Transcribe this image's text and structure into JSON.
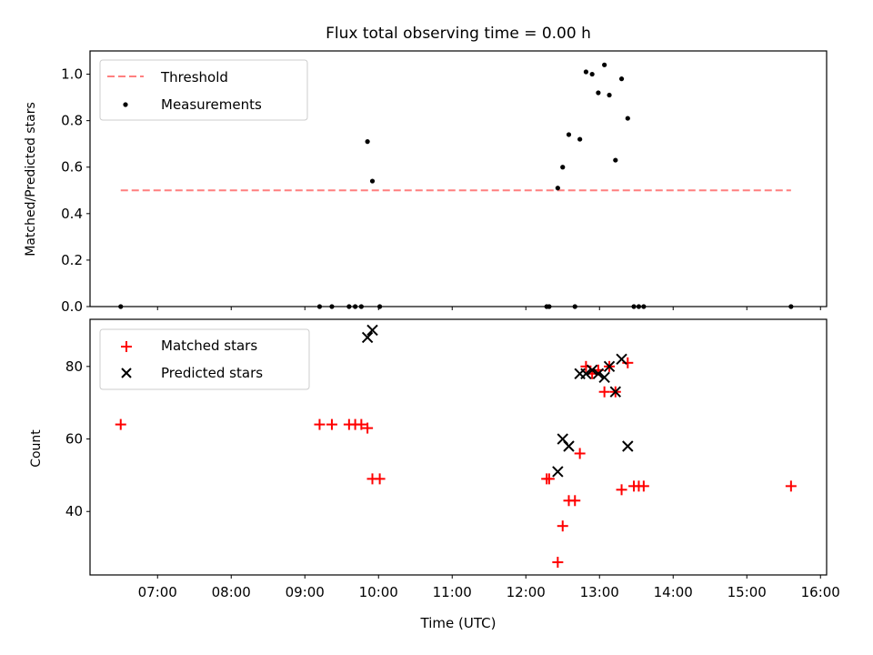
{
  "chart_data": [
    {
      "type": "scatter",
      "title": "Flux total observing time = 0.00 h",
      "xlabel": "",
      "ylabel": "Matched/Predicted stars",
      "xlim": [
        "06:05",
        "16:05"
      ],
      "ylim": [
        0,
        1.1
      ],
      "yticks": [
        0.0,
        0.2,
        0.4,
        0.6,
        0.8,
        1.0
      ],
      "ytick_labels": [
        "0.0",
        "0.2",
        "0.4",
        "0.6",
        "0.8",
        "1.0"
      ],
      "grid": false,
      "legend_position": "upper-left",
      "series": [
        {
          "name": "Threshold",
          "kind": "dashed-line",
          "color": "#ff7f7f",
          "x": [
            "06:30",
            "15:36"
          ],
          "y": [
            0.5,
            0.5
          ]
        },
        {
          "name": "Measurements",
          "kind": "dot",
          "color": "#000000",
          "x": [
            "06:30",
            "09:12",
            "09:22",
            "09:36",
            "09:41",
            "09:46",
            "09:51",
            "09:55",
            "10:01",
            "12:17",
            "12:19",
            "12:26",
            "12:30",
            "12:35",
            "12:40",
            "12:44",
            "12:49",
            "12:54",
            "12:59",
            "13:04",
            "13:08",
            "13:13",
            "13:18",
            "13:23",
            "13:28",
            "13:32",
            "13:36",
            "15:36"
          ],
          "y": [
            0.0,
            0.0,
            0.0,
            0.0,
            0.0,
            0.0,
            0.71,
            0.54,
            0.0,
            0.0,
            0.0,
            0.51,
            0.6,
            0.74,
            0.0,
            0.72,
            1.01,
            1.0,
            0.92,
            1.04,
            0.91,
            0.63,
            0.98,
            0.81,
            0.0,
            0.0,
            0.0,
            0.0
          ]
        }
      ]
    },
    {
      "type": "scatter",
      "title": "",
      "xlabel": "Time (UTC)",
      "ylabel": "Count",
      "xlim": [
        "06:05",
        "16:05"
      ],
      "ylim": [
        22.5,
        93
      ],
      "xtick_labels": [
        "07:00",
        "08:00",
        "09:00",
        "10:00",
        "11:00",
        "12:00",
        "13:00",
        "14:00",
        "15:00",
        "16:00"
      ],
      "yticks": [
        40,
        60,
        80
      ],
      "ytick_labels": [
        "40",
        "60",
        "80"
      ],
      "grid": false,
      "legend_position": "upper-left",
      "series": [
        {
          "name": "Matched stars",
          "marker": "plus",
          "color": "#ff0000",
          "x": [
            "06:30",
            "09:12",
            "09:22",
            "09:36",
            "09:41",
            "09:46",
            "09:51",
            "09:55",
            "10:01",
            "12:17",
            "12:19",
            "12:26",
            "12:30",
            "12:35",
            "12:40",
            "12:44",
            "12:49",
            "12:54",
            "12:59",
            "13:04",
            "13:08",
            "13:13",
            "13:18",
            "13:23",
            "13:28",
            "13:32",
            "13:36",
            "15:36"
          ],
          "y": [
            64,
            64,
            64,
            64,
            64,
            64,
            63,
            49,
            49,
            49,
            49,
            26,
            36,
            43,
            43,
            56,
            80,
            78,
            79,
            73,
            80,
            73,
            46,
            81,
            47,
            47,
            47,
            47
          ]
        },
        {
          "name": "Predicted stars",
          "marker": "x",
          "color": "#000000",
          "x": [
            "09:51",
            "09:55",
            "12:26",
            "12:30",
            "12:35",
            "12:44",
            "12:49",
            "12:54",
            "12:59",
            "13:04",
            "13:08",
            "13:13",
            "13:18",
            "13:23"
          ],
          "y": [
            88,
            90,
            51,
            60,
            58,
            78,
            78,
            79,
            78,
            77,
            80,
            73,
            82,
            58
          ]
        }
      ]
    }
  ]
}
